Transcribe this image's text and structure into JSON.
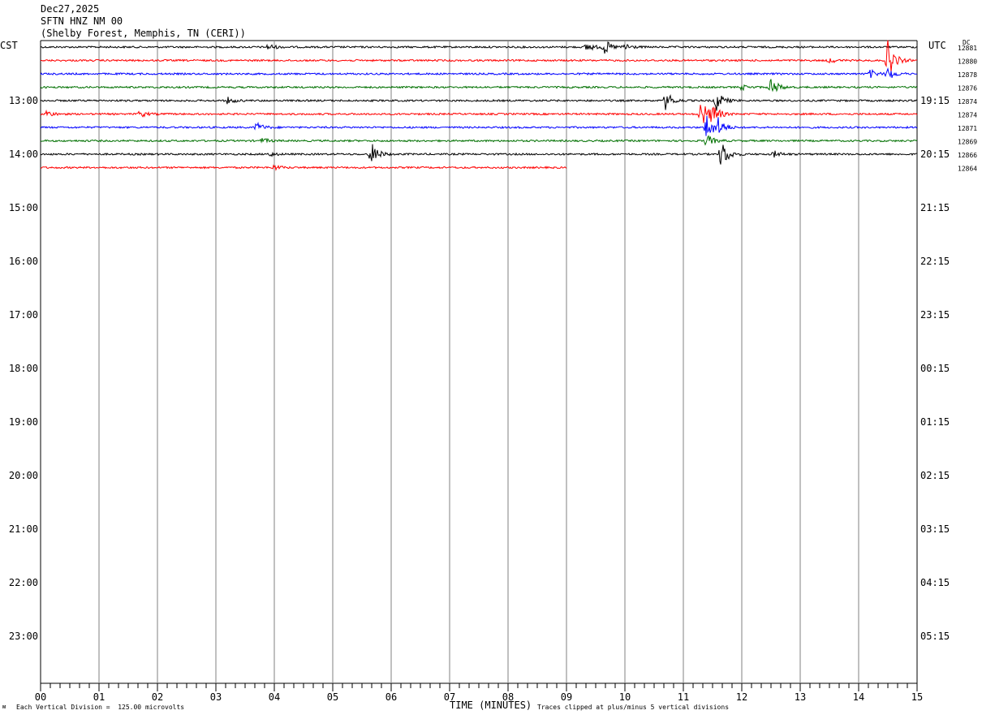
{
  "header": {
    "date": "Dec27,2025",
    "station": "SFTN HNZ NM 00",
    "location": "(Shelby Forest, Memphis, TN (CERI))"
  },
  "left_timezone": "CST",
  "right_timezone": "UTC",
  "dc_label": "DC",
  "footer": {
    "scale_note": "Each Vertical Division =  125.00 microvolts",
    "xlabel": "TIME (MINUTES)",
    "clip_note": "Traces clipped at plus/minus 5 vertical divisions"
  },
  "colors": {
    "trace_cycle": [
      "#000000",
      "#ff0000",
      "#0000ff",
      "#007000"
    ],
    "grid": "#808080"
  },
  "chart_data": {
    "type": "line",
    "title": "SFTN HNZ NM 00",
    "xlabel": "TIME (MINUTES)",
    "xlim": [
      0,
      15
    ],
    "x_ticks": [
      "00",
      "01",
      "02",
      "03",
      "04",
      "05",
      "06",
      "07",
      "08",
      "09",
      "10",
      "11",
      "12",
      "13",
      "14",
      "15"
    ],
    "left_hour_labels": [
      "13:00",
      "14:00",
      "15:00",
      "16:00",
      "17:00",
      "18:00",
      "19:00",
      "20:00",
      "21:00",
      "22:00",
      "23:00"
    ],
    "right_hour_labels": [
      "19:15",
      "20:15",
      "21:15",
      "22:15",
      "23:15",
      "00:15",
      "01:15",
      "02:15",
      "03:15",
      "04:15",
      "05:15"
    ],
    "rows_per_hour": 4,
    "minutes_per_row": 15,
    "dc_offsets": [
      "12881",
      "12880",
      "12878",
      "12876",
      "12874",
      "12874",
      "12871",
      "12869",
      "12866",
      "12864"
    ],
    "traces": [
      {
        "index": 0,
        "color": "black",
        "end_minute": 15,
        "events": [
          {
            "t": 3.9,
            "amp": 4
          },
          {
            "t": 9.35,
            "amp": 6
          },
          {
            "t": 9.65,
            "amp": 9
          },
          {
            "t": 10.0,
            "amp": 5
          }
        ]
      },
      {
        "index": 1,
        "color": "red",
        "end_minute": 15,
        "events": [
          {
            "t": 13.5,
            "amp": 3
          },
          {
            "t": 14.5,
            "amp": 24
          }
        ]
      },
      {
        "index": 2,
        "color": "blue",
        "end_minute": 15,
        "events": [
          {
            "t": 14.2,
            "amp": 5
          },
          {
            "t": 14.5,
            "amp": 8
          }
        ]
      },
      {
        "index": 3,
        "color": "green",
        "end_minute": 15,
        "events": [
          {
            "t": 12.0,
            "amp": 3
          },
          {
            "t": 12.5,
            "amp": 12
          }
        ]
      },
      {
        "index": 4,
        "color": "black",
        "end_minute": 15,
        "events": [
          {
            "t": 3.2,
            "amp": 4
          },
          {
            "t": 10.7,
            "amp": 12
          },
          {
            "t": 11.55,
            "amp": 15
          }
        ]
      },
      {
        "index": 5,
        "color": "red",
        "end_minute": 15,
        "events": [
          {
            "t": 0.1,
            "amp": 4
          },
          {
            "t": 1.7,
            "amp": 4
          },
          {
            "t": 11.3,
            "amp": 20
          },
          {
            "t": 11.5,
            "amp": 12
          }
        ]
      },
      {
        "index": 6,
        "color": "blue",
        "end_minute": 15,
        "events": [
          {
            "t": 3.7,
            "amp": 6
          },
          {
            "t": 11.4,
            "amp": 18
          },
          {
            "t": 11.6,
            "amp": 10
          }
        ]
      },
      {
        "index": 7,
        "color": "green",
        "end_minute": 15,
        "events": [
          {
            "t": 3.8,
            "amp": 3
          },
          {
            "t": 11.4,
            "amp": 8
          }
        ]
      },
      {
        "index": 8,
        "color": "black",
        "end_minute": 15,
        "events": [
          {
            "t": 3.9,
            "amp": 3
          },
          {
            "t": 5.65,
            "amp": 16
          },
          {
            "t": 11.65,
            "amp": 19
          },
          {
            "t": 12.55,
            "amp": 4
          }
        ]
      },
      {
        "index": 9,
        "color": "red",
        "end_minute": 9,
        "events": [
          {
            "t": 4.0,
            "amp": 3
          }
        ]
      }
    ]
  }
}
